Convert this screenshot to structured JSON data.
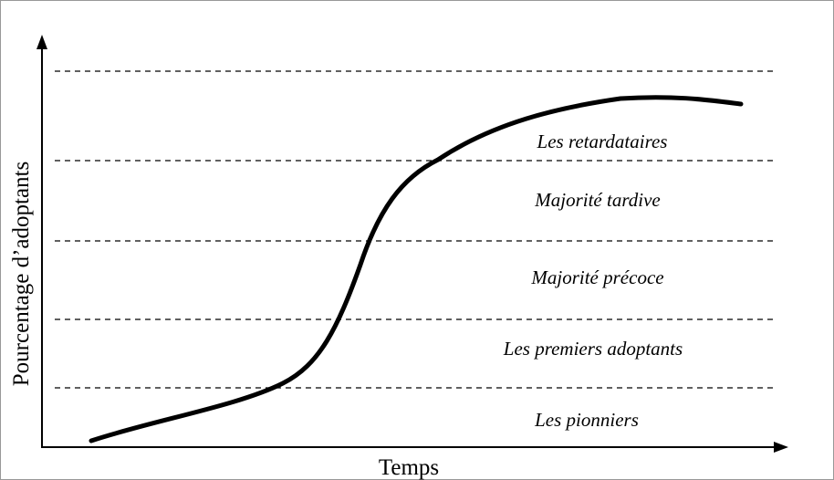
{
  "diagram": {
    "y_axis_label": "Pourcentage d’adoptants",
    "x_axis_label": "Temps",
    "bands": [
      "Les retardataires",
      "Majorité tardive",
      "Majorité précoce",
      "Les premiers adoptants",
      "Les pionniers"
    ]
  }
}
